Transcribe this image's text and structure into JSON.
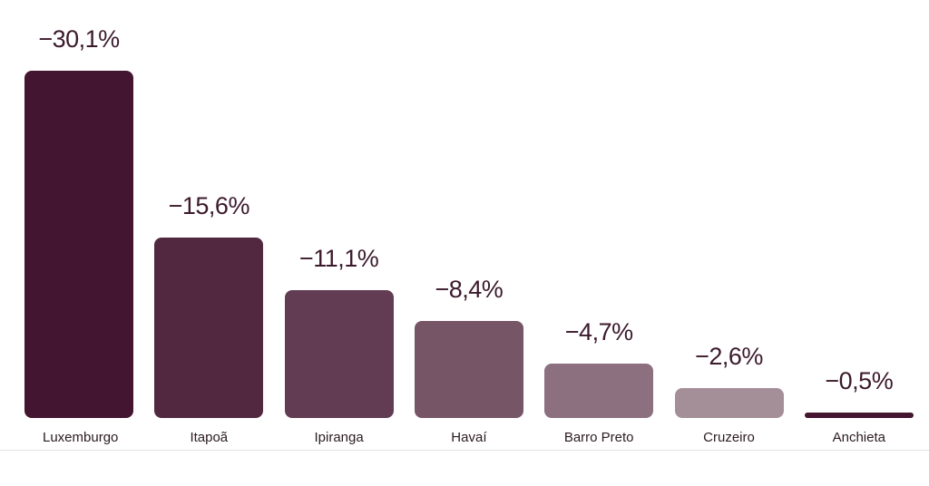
{
  "chart_data": {
    "type": "bar",
    "categories": [
      "Luxemburgo",
      "Itapoã",
      "Ipiranga",
      "Havaí",
      "Barro Preto",
      "Cruzeiro",
      "Anchieta"
    ],
    "values": [
      -30.1,
      -15.6,
      -11.1,
      -8.4,
      -4.7,
      -2.6,
      -0.5
    ],
    "value_labels": [
      "−30,1%",
      "−15,6%",
      "−11,1%",
      "−8,4%",
      "−4,7%",
      "−2,6%",
      "−0,5%"
    ],
    "colors": [
      "#431530",
      "#522840",
      "#623c52",
      "#765566",
      "#8c7080",
      "#a48f99",
      "#431530"
    ],
    "ylim": [
      0,
      -36.2
    ]
  }
}
